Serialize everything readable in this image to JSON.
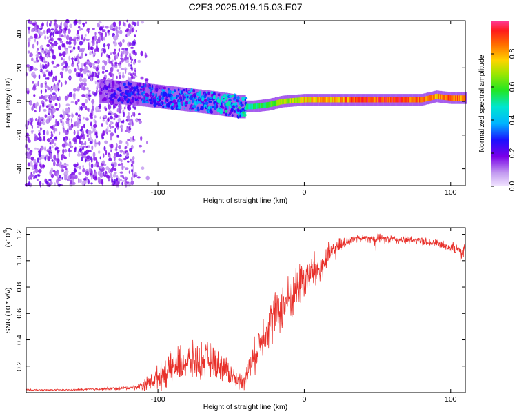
{
  "title": "C2E3.2025.019.15.03.E07",
  "chart_data": [
    {
      "type": "heatmap",
      "title": "C2E3.2025.019.15.03.E07",
      "xlabel": "Height of straight line (km)",
      "ylabel": "Frequency (Hz)",
      "xlim": [
        -190,
        110
      ],
      "ylim": [
        -50,
        48
      ],
      "xticks": [
        -100,
        0,
        100
      ],
      "xtick_labels": [
        "-100",
        "0",
        "100"
      ],
      "yticks": [
        -40,
        -20,
        0,
        20,
        40
      ],
      "ytick_labels": [
        "-40",
        "-20",
        "0",
        "20",
        "40"
      ],
      "colorbar": {
        "label": "Normalized spectral amplitude",
        "range": [
          0,
          1
        ],
        "ticks": [
          0.0,
          0.2,
          0.4,
          0.6,
          0.8
        ],
        "tick_labels": [
          "0.0",
          "0.2",
          "0.4",
          "0.6",
          "0.8"
        ],
        "colormap": "rainbow"
      },
      "features": [
        {
          "region": "noise",
          "x_range": [
            -190,
            -115
          ],
          "y_range": [
            -50,
            48
          ],
          "amplitude": 0.15
        },
        {
          "region": "track",
          "x": [
            -140,
            -120,
            -100,
            -80,
            -60,
            -45,
            -35,
            -25,
            -15,
            0,
            20,
            40,
            60,
            80,
            90,
            100,
            110
          ],
          "freq": [
            6,
            5,
            3,
            1,
            -1,
            -3,
            -3,
            -2,
            0,
            1,
            1,
            1,
            1,
            1,
            3,
            2,
            2
          ],
          "amplitude": [
            0.2,
            0.3,
            0.35,
            0.4,
            0.45,
            0.5,
            0.55,
            0.6,
            0.7,
            0.8,
            0.85,
            0.95,
            0.95,
            0.9,
            0.85,
            0.9,
            0.9
          ]
        }
      ]
    },
    {
      "type": "line",
      "xlabel": "Height of straight line (km)",
      "ylabel": "SNR (10 * v/v)",
      "y_multiplier": "(x10",
      "y_multiplier_exp": "4",
      "xlim": [
        -190,
        110
      ],
      "ylim": [
        0,
        1.25
      ],
      "xticks": [
        -100,
        0,
        100
      ],
      "xtick_labels": [
        "-100",
        "0",
        "100"
      ],
      "yticks": [
        0.2,
        0.4,
        0.6,
        0.8,
        1.0,
        1.2
      ],
      "ytick_labels": [
        "0.2",
        "0.4",
        "0.6",
        "0.8",
        "1.0",
        "1.2"
      ],
      "series": [
        {
          "color": "#e8302a",
          "x": [
            -190,
            -160,
            -130,
            -115,
            -105,
            -95,
            -85,
            -75,
            -65,
            -55,
            -45,
            -40,
            -33,
            -28,
            -22,
            -15,
            -8,
            -2,
            5,
            12,
            18,
            25,
            30,
            35,
            45,
            60,
            80,
            95,
            105,
            110
          ],
          "values": [
            0.02,
            0.02,
            0.03,
            0.04,
            0.08,
            0.15,
            0.22,
            0.24,
            0.25,
            0.2,
            0.08,
            0.12,
            0.3,
            0.45,
            0.55,
            0.65,
            0.75,
            0.85,
            0.9,
            0.95,
            1.05,
            1.12,
            1.15,
            1.17,
            1.17,
            1.16,
            1.15,
            1.12,
            1.08,
            1.08
          ],
          "spread": [
            0.005,
            0.005,
            0.01,
            0.015,
            0.06,
            0.1,
            0.12,
            0.12,
            0.12,
            0.1,
            0.05,
            0.08,
            0.12,
            0.14,
            0.16,
            0.16,
            0.16,
            0.16,
            0.14,
            0.12,
            0.08,
            0.05,
            0.04,
            0.03,
            0.03,
            0.03,
            0.03,
            0.03,
            0.04,
            0.04
          ]
        }
      ]
    }
  ]
}
